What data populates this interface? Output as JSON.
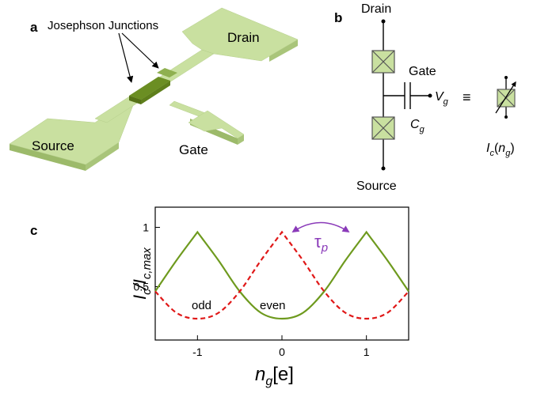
{
  "panel_a": {
    "letter": "a",
    "junction_label": "Josephson Junctions",
    "drain_label": "Drain",
    "source_label": "Source",
    "gate_label": "Gate"
  },
  "panel_b": {
    "letter": "b",
    "drain_label": "Drain",
    "source_label": "Source",
    "gate_label": "Gate",
    "vg_label": "V",
    "vg_sub": "g",
    "cg_label": "C",
    "cg_sub": "g",
    "equiv_symbol": "≡",
    "ic_label": {
      "I": "I",
      "c": "c",
      "paren": "(n",
      "g": "g",
      "close": ")"
    }
  },
  "panel_c": {
    "letter": "c",
    "tau_label": "τ",
    "tau_sub": "p",
    "odd_label": "odd",
    "even_label": "even",
    "ylabel": {
      "I": "I",
      "c": "c",
      "slash": "/I",
      "cmax": "c,max"
    },
    "xlabel": {
      "n": "n",
      "g": "g",
      "unit": "[e]"
    }
  },
  "colors": {
    "green_pad": "#c9e0a0",
    "green_dark": "#6b8e23",
    "green_line": "#6e9a1e",
    "red_dashed": "#e01818",
    "tau_purple": "#8a3ab9"
  },
  "chart_data": {
    "type": "line",
    "xlabel": "n_g[e]",
    "ylabel": "I_c/I_c,max",
    "xlim": [
      -1.5,
      1.5
    ],
    "ylim": [
      0.05,
      1.17
    ],
    "xticks": [
      "-1",
      "0",
      "1"
    ],
    "yticks": [
      "0.5",
      "1"
    ],
    "series": [
      {
        "name": "even",
        "style": "solid",
        "color": "#6e9a1e",
        "x": [
          -1.5,
          -1.25,
          -1.0,
          -0.75,
          -0.5,
          -0.25,
          0.0,
          0.25,
          0.5,
          0.75,
          1.0,
          1.25,
          1.5
        ],
        "y": [
          0.46,
          0.72,
          0.96,
          0.72,
          0.46,
          0.28,
          0.23,
          0.28,
          0.46,
          0.72,
          0.96,
          0.72,
          0.46
        ]
      },
      {
        "name": "odd",
        "style": "dashed",
        "color": "#e01818",
        "x": [
          -1.5,
          -1.25,
          -1.0,
          -0.75,
          -0.5,
          -0.25,
          0.0,
          0.25,
          0.5,
          0.75,
          1.0,
          1.25,
          1.5
        ],
        "y": [
          0.46,
          0.28,
          0.23,
          0.28,
          0.46,
          0.72,
          0.96,
          0.72,
          0.46,
          0.28,
          0.23,
          0.28,
          0.46
        ]
      }
    ]
  }
}
